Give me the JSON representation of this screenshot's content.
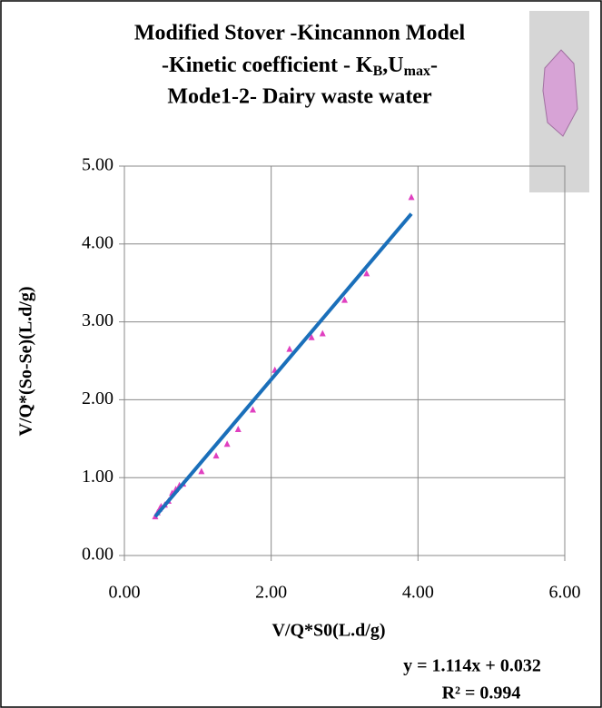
{
  "chart_data": {
    "type": "scatter",
    "title": [
      "Modified Stover -Kincannon Model",
      [
        "-Kinetic coefficient  - K",
        "B",
        ",U",
        "max",
        "-"
      ],
      "Mode1-2- Dairy waste water"
    ],
    "x_label": "V/Q*S0(L.d/g)",
    "y_label": "V/Q*(So-Se)(L.d/g)",
    "xlim": [
      0,
      6
    ],
    "ylim": [
      0,
      5
    ],
    "xticks": [
      {
        "value": 0,
        "label": "0.00"
      },
      {
        "value": 2,
        "label": "2.00"
      },
      {
        "value": 4,
        "label": "4.00"
      },
      {
        "value": 6,
        "label": "6.00"
      }
    ],
    "yticks": [
      {
        "value": 0,
        "label": "0.00"
      },
      {
        "value": 1,
        "label": "1.00"
      },
      {
        "value": 2,
        "label": "2.00"
      },
      {
        "value": 3,
        "label": "3.00"
      },
      {
        "value": 4,
        "label": "4.00"
      },
      {
        "value": 5,
        "label": "5.00"
      }
    ],
    "grid": true,
    "series": [
      {
        "color": "#e040c0",
        "x": [
          0.42,
          0.45,
          0.48,
          0.5,
          0.55,
          0.6,
          0.65,
          0.7,
          0.75,
          0.8,
          1.05,
          1.25,
          1.4,
          1.55,
          1.75,
          2.05,
          2.25,
          2.55,
          2.7,
          3.0,
          3.3,
          3.91
        ],
        "values": [
          0.5,
          0.55,
          0.6,
          0.63,
          0.65,
          0.7,
          0.8,
          0.85,
          0.9,
          0.92,
          1.08,
          1.28,
          1.43,
          1.62,
          1.87,
          2.38,
          2.65,
          2.8,
          2.85,
          3.28,
          3.62,
          4.6
        ]
      }
    ],
    "trendline": {
      "slope": 1.114,
      "intercept": 0.032,
      "color": "#1a6fba",
      "equation": "y = 1.114x + 0.032",
      "r2": "R² = 0.994"
    }
  }
}
